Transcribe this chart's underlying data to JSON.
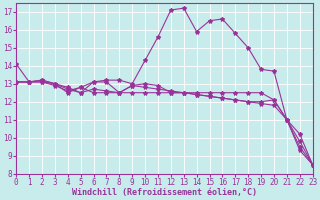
{
  "xlabel": "Windchill (Refroidissement éolien,°C)",
  "bg_color": "#c8ecec",
  "grid_color": "#ffffff",
  "line_color": "#993399",
  "xlim": [
    0,
    23
  ],
  "ylim": [
    8,
    17.5
  ],
  "yticks": [
    8,
    9,
    10,
    11,
    12,
    13,
    14,
    15,
    16,
    17
  ],
  "xticks": [
    0,
    1,
    2,
    3,
    4,
    5,
    6,
    7,
    8,
    9,
    10,
    11,
    12,
    13,
    14,
    15,
    16,
    17,
    18,
    19,
    20,
    21,
    22,
    23
  ],
  "curves": [
    {
      "x": [
        0,
        1,
        2,
        3,
        4,
        5,
        6,
        7,
        8,
        9,
        10,
        11,
        12,
        13,
        14,
        15,
        16,
        17,
        18,
        19,
        20,
        21,
        22,
        23
      ],
      "y": [
        14.1,
        13.1,
        13.2,
        13.0,
        12.8,
        12.5,
        13.1,
        13.2,
        13.2,
        13.0,
        14.3,
        15.6,
        17.1,
        17.2,
        15.9,
        16.5,
        16.6,
        15.8,
        15.0,
        13.8,
        13.7,
        11.0,
        9.3,
        8.5
      ]
    },
    {
      "x": [
        0,
        1,
        2,
        3,
        4,
        5,
        6,
        7,
        8,
        9,
        10,
        11,
        12,
        13,
        14,
        15,
        16,
        17,
        18,
        19,
        20,
        21,
        22,
        23
      ],
      "y": [
        13.1,
        13.1,
        13.1,
        13.0,
        12.7,
        12.5,
        12.7,
        12.6,
        12.5,
        12.5,
        12.5,
        12.5,
        12.5,
        12.5,
        12.5,
        12.5,
        12.5,
        12.5,
        12.5,
        12.5,
        12.1,
        11.0,
        9.8,
        8.5
      ]
    },
    {
      "x": [
        0,
        1,
        2,
        3,
        4,
        5,
        6,
        7,
        8,
        9,
        10,
        11,
        12,
        13,
        14,
        15,
        16,
        17,
        18,
        19,
        20,
        21,
        22,
        23
      ],
      "y": [
        13.1,
        13.1,
        13.1,
        12.9,
        12.6,
        12.8,
        13.1,
        13.1,
        12.5,
        12.9,
        12.8,
        12.7,
        12.6,
        12.5,
        12.4,
        12.3,
        12.2,
        12.1,
        12.0,
        11.9,
        11.8,
        11.0,
        9.5,
        8.5
      ]
    },
    {
      "x": [
        0,
        1,
        2,
        3,
        4,
        5,
        6,
        7,
        8,
        9,
        10,
        11,
        12,
        13,
        14,
        15,
        16,
        17,
        18,
        19,
        20,
        21,
        22,
        23
      ],
      "y": [
        13.1,
        13.1,
        13.2,
        13.0,
        12.5,
        12.8,
        12.5,
        12.5,
        12.5,
        12.9,
        13.0,
        12.9,
        12.5,
        12.5,
        12.4,
        12.3,
        12.2,
        12.1,
        12.0,
        12.0,
        12.1,
        11.0,
        10.2,
        8.5
      ]
    }
  ],
  "marker": "*",
  "markersize": 3.0,
  "linewidth": 0.8,
  "xlabel_fontsize": 6.0,
  "tick_fontsize": 5.5,
  "tick_color": "#993399",
  "label_color": "#993399"
}
